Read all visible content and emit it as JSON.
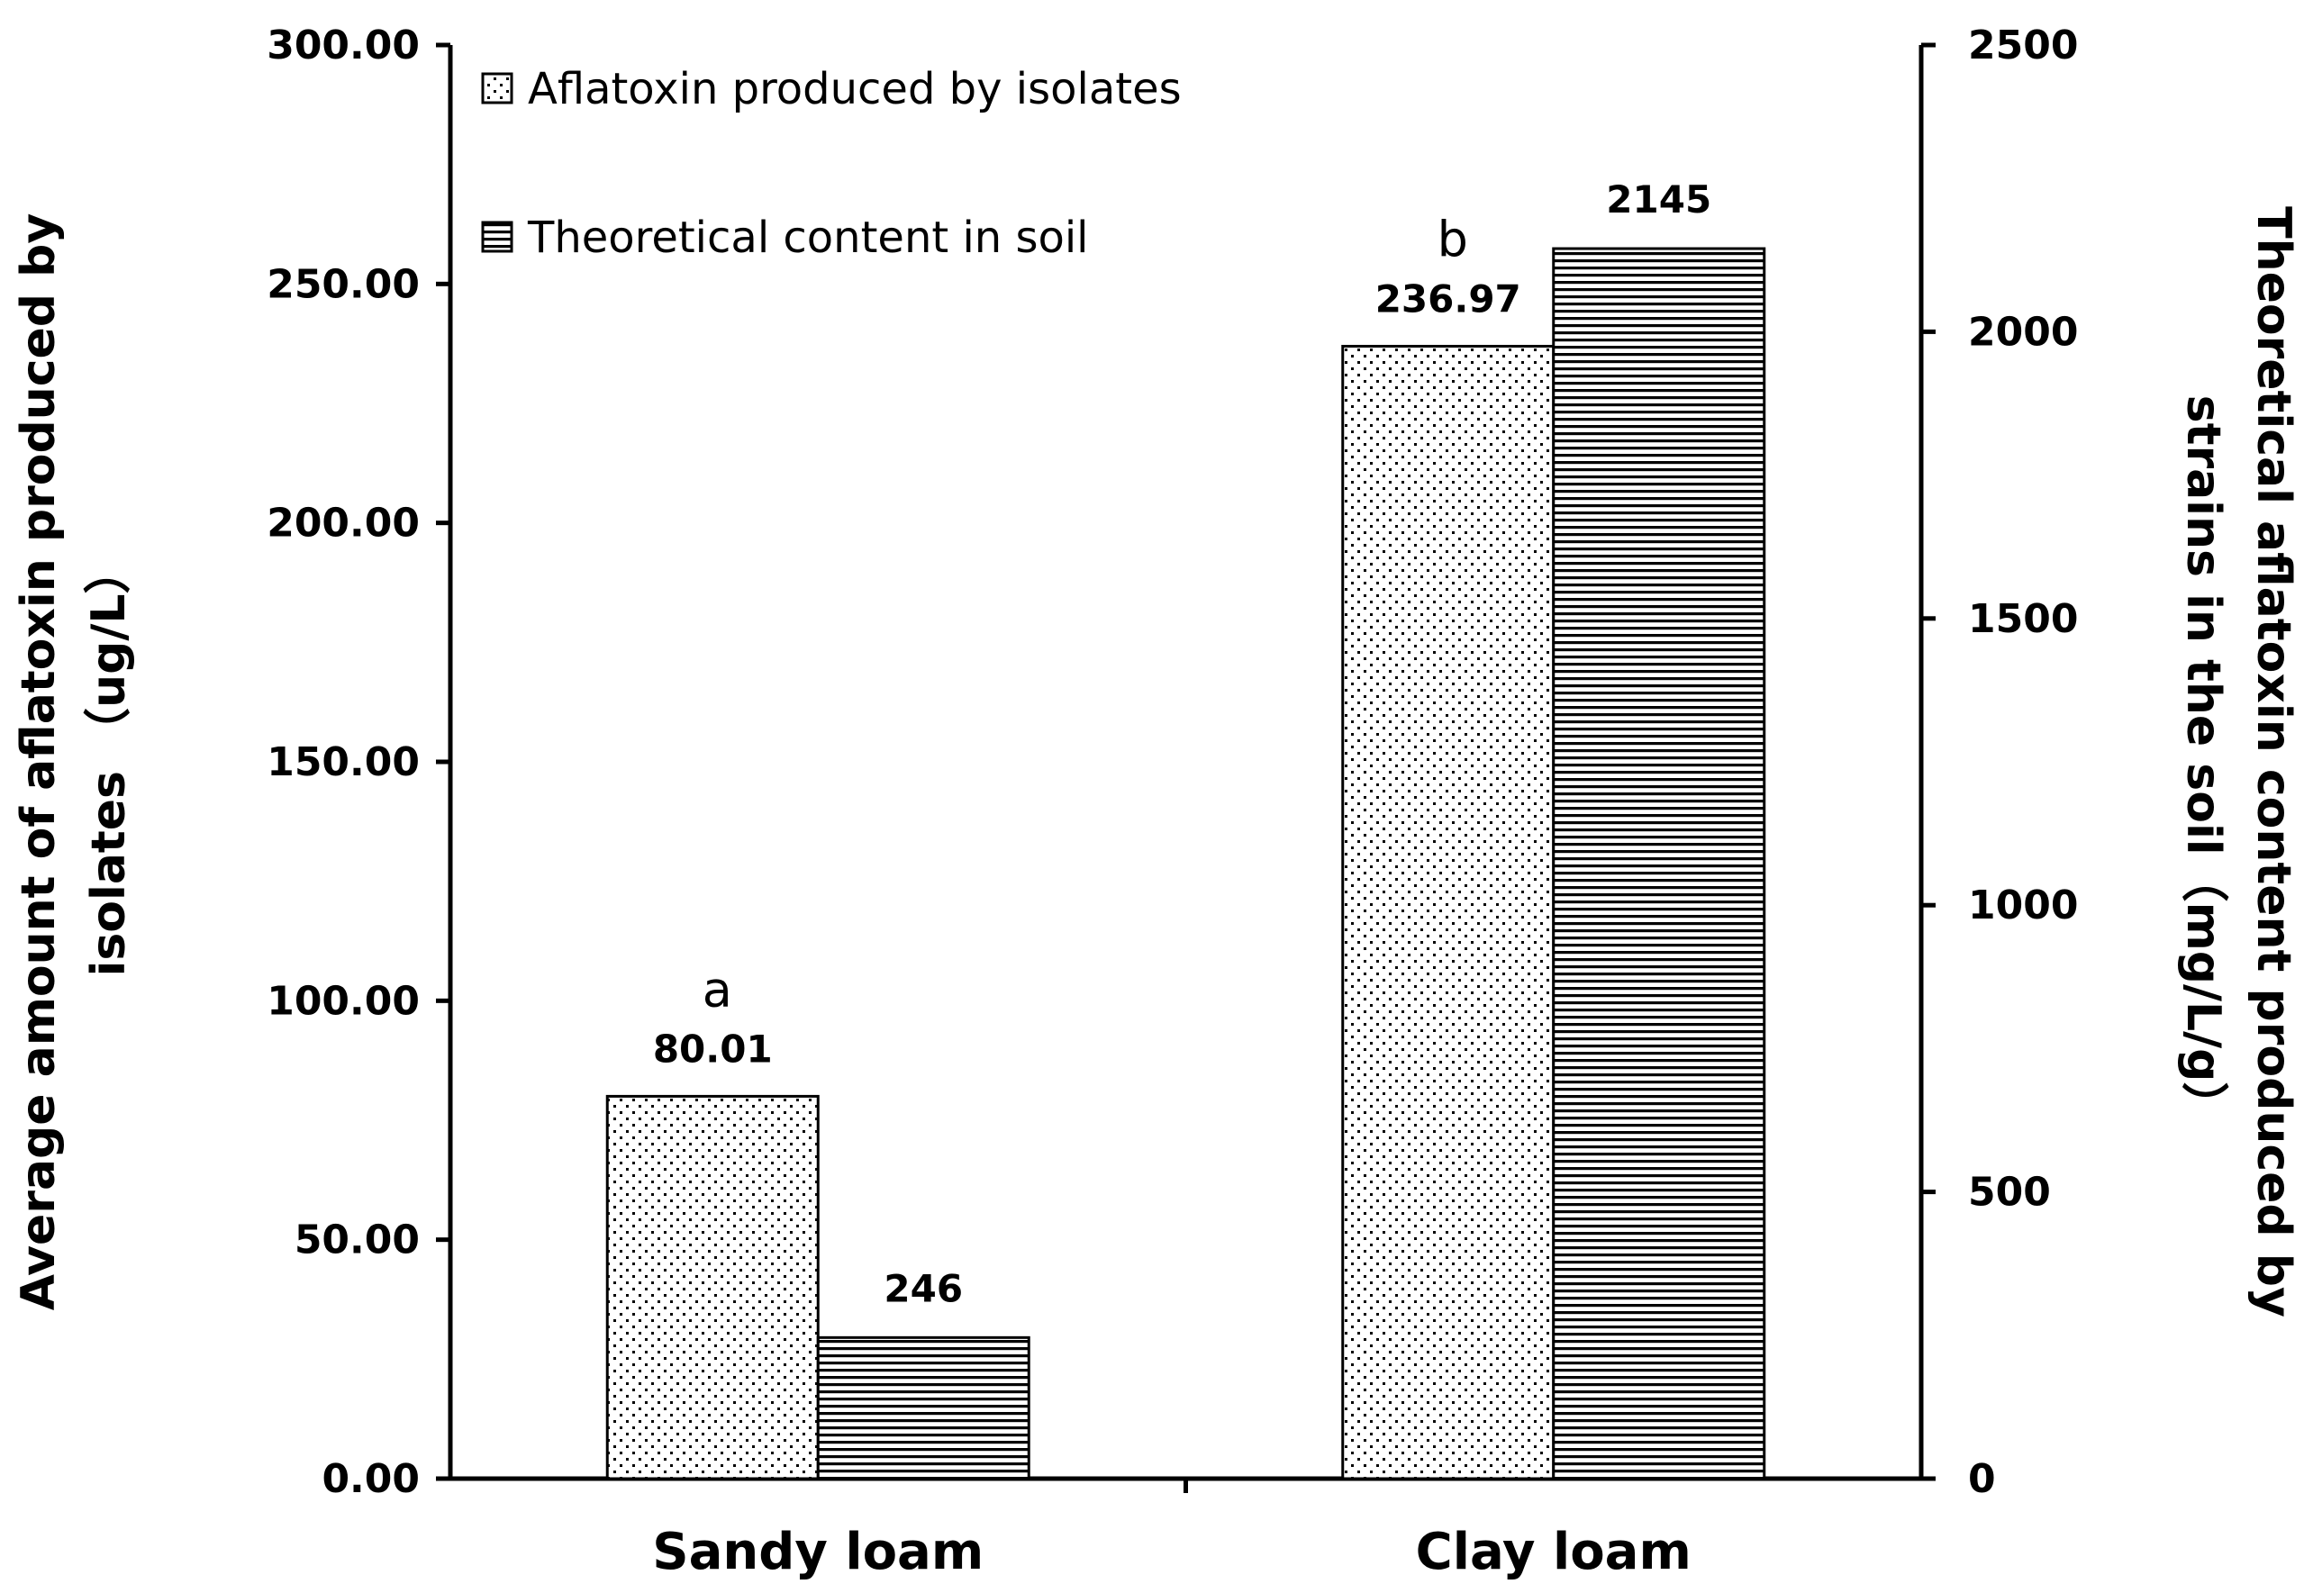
{
  "chart_data": {
    "type": "bar",
    "categories": [
      "Sandy loam",
      "Clay loam"
    ],
    "series": [
      {
        "name": "Aflatoxin produced by isolates",
        "axis": "left",
        "pattern": "dots",
        "values": [
          80.01,
          236.97
        ],
        "labels": [
          "80.01",
          "236.97"
        ],
        "significance": [
          "a",
          "b"
        ]
      },
      {
        "name": "Theoretical  content in soil",
        "axis": "right",
        "pattern": "horizontal-lines",
        "values": [
          246,
          2145
        ],
        "labels": [
          "246",
          "2145"
        ]
      }
    ],
    "y_left": {
      "label_lines": [
        "Average amount of aflatoxin produced by",
        "isolates （ug/L）"
      ],
      "ylim": [
        0,
        300
      ],
      "ticks": [
        "0.00",
        "50.00",
        "100.00",
        "150.00",
        "200.00",
        "250.00",
        "300.00"
      ],
      "tick_values": [
        0,
        50,
        100,
        150,
        200,
        250,
        300
      ]
    },
    "y_right": {
      "label_lines": [
        "Theoretical  aflatoxin content produced by",
        "strains in the soil（mg/L/g）"
      ],
      "ylim": [
        0,
        2500
      ],
      "ticks": [
        "0",
        "500",
        "1000",
        "1500",
        "2000",
        "2500"
      ],
      "tick_values": [
        0,
        500,
        1000,
        1500,
        2000,
        2500
      ]
    },
    "legend_position": "top-left",
    "grid": false
  }
}
